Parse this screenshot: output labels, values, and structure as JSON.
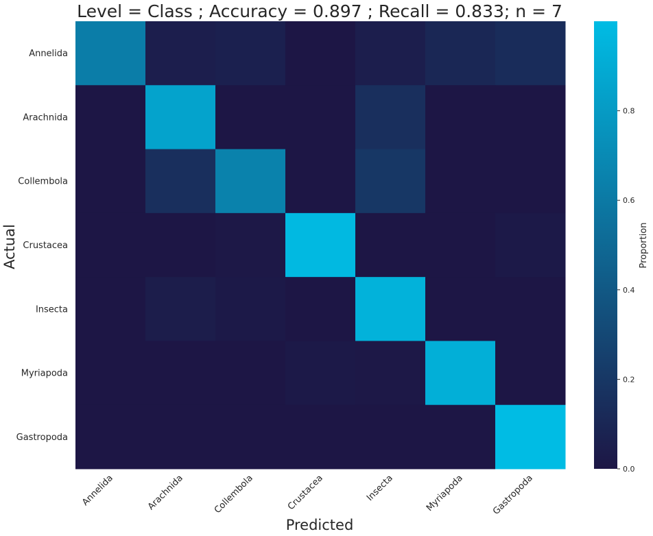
{
  "chart_data": {
    "type": "heatmap",
    "title": "Level = Class ; Accuracy = 0.897 ; Recall = 0.833; n = 7",
    "xlabel": "Predicted",
    "ylabel": "Actual",
    "x_categories": [
      "Annelida",
      "Arachnida",
      "Collembola",
      "Crustacea",
      "Insecta",
      "Myriapoda",
      "Gastropoda"
    ],
    "y_categories": [
      "Annelida",
      "Arachnida",
      "Collembola",
      "Crustacea",
      "Insecta",
      "Myriapoda",
      "Gastropoda"
    ],
    "values": [
      [
        0.62,
        0.05,
        0.06,
        0.0,
        0.05,
        0.1,
        0.13
      ],
      [
        0.0,
        0.85,
        0.0,
        0.0,
        0.15,
        0.0,
        0.0
      ],
      [
        0.0,
        0.15,
        0.65,
        0.0,
        0.2,
        0.0,
        0.0
      ],
      [
        0.0,
        0.0,
        0.01,
        0.98,
        0.0,
        0.0,
        0.02
      ],
      [
        0.0,
        0.04,
        0.02,
        0.0,
        0.94,
        0.0,
        0.0
      ],
      [
        0.0,
        0.0,
        0.0,
        0.02,
        0.01,
        0.92,
        0.0
      ],
      [
        0.0,
        0.0,
        0.0,
        0.0,
        0.0,
        0.0,
        1.0
      ]
    ],
    "colorbar": {
      "label": "Proportion",
      "range": [
        0,
        1
      ],
      "ticks": [
        0.0,
        0.2,
        0.4,
        0.6,
        0.8
      ],
      "tick_labels": [
        "0.0",
        "0.2",
        "0.4",
        "0.6",
        "0.8"
      ],
      "colors": [
        "#1d1645",
        "#00bce4"
      ]
    },
    "grid": false
  }
}
